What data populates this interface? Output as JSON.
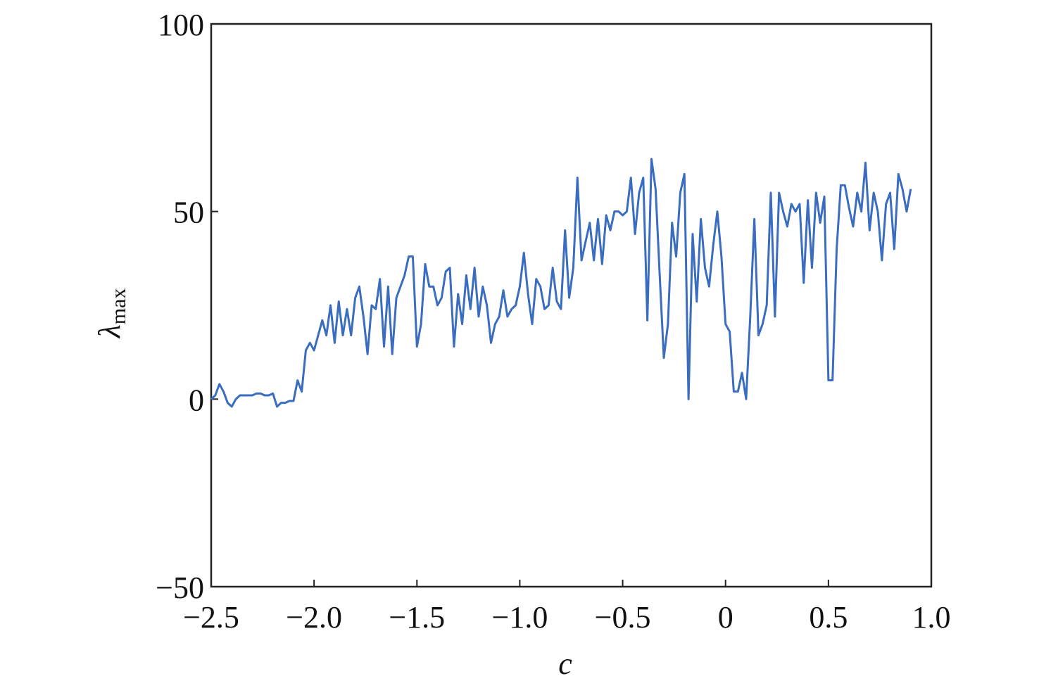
{
  "chart_data": {
    "type": "line",
    "x_label": "c",
    "y_label": "λ",
    "y_label_subscript": "max",
    "xlim": [
      -2.5,
      1.0
    ],
    "ylim": [
      -50,
      100
    ],
    "xticks": [
      {
        "value": -2.5,
        "label": "−2.5"
      },
      {
        "value": -2.0,
        "label": "−2.0"
      },
      {
        "value": -1.5,
        "label": "−1.5"
      },
      {
        "value": -1.0,
        "label": "−1.0"
      },
      {
        "value": -0.5,
        "label": "−0.5"
      },
      0,
      0.5,
      {
        "value": 1.0,
        "label": "1.0"
      }
    ],
    "yticks": [
      {
        "value": -50,
        "label": "−50"
      },
      0,
      50,
      100
    ],
    "grid": false,
    "series": [
      {
        "color": "#3a6dbf",
        "x": [
          -2.5,
          -2.48,
          -2.46,
          -2.44,
          -2.42,
          -2.4,
          -2.38,
          -2.36,
          -2.34,
          -2.32,
          -2.3,
          -2.28,
          -2.26,
          -2.24,
          -2.22,
          -2.2,
          -2.18,
          -2.16,
          -2.14,
          -2.12,
          -2.1,
          -2.08,
          -2.06,
          -2.04,
          -2.02,
          -2,
          -1.98,
          -1.96,
          -1.94,
          -1.92,
          -1.9,
          -1.88,
          -1.86,
          -1.84,
          -1.82,
          -1.8,
          -1.78,
          -1.76,
          -1.74,
          -1.72,
          -1.7,
          -1.68,
          -1.66,
          -1.64,
          -1.62,
          -1.6,
          -1.58,
          -1.56,
          -1.54,
          -1.52,
          -1.5,
          -1.48,
          -1.46,
          -1.44,
          -1.42,
          -1.4,
          -1.38,
          -1.36,
          -1.34,
          -1.32,
          -1.3,
          -1.28,
          -1.26,
          -1.24,
          -1.22,
          -1.2,
          -1.18,
          -1.16,
          -1.14,
          -1.12,
          -1.1,
          -1.08,
          -1.06,
          -1.04,
          -1.02,
          -1,
          -0.98,
          -0.96,
          -0.94,
          -0.92,
          -0.9,
          -0.88,
          -0.86,
          -0.84,
          -0.82,
          -0.8,
          -0.78,
          -0.76,
          -0.74,
          -0.72,
          -0.7,
          -0.68,
          -0.66,
          -0.64,
          -0.62,
          -0.6,
          -0.58,
          -0.56,
          -0.54,
          -0.52,
          -0.5,
          -0.48,
          -0.46,
          -0.44,
          -0.42,
          -0.4,
          -0.38,
          -0.36,
          -0.34,
          -0.32,
          -0.3,
          -0.28,
          -0.26,
          -0.24,
          -0.22,
          -0.2,
          -0.18,
          -0.16,
          -0.14,
          -0.12,
          -0.1,
          -0.08,
          -0.06,
          -0.04,
          -0.02,
          0,
          0.02,
          0.04,
          0.06,
          0.08,
          0.1,
          0.12,
          0.14,
          0.16,
          0.18,
          0.2,
          0.22,
          0.24,
          0.26,
          0.28,
          0.3,
          0.32,
          0.34,
          0.36,
          0.38,
          0.4,
          0.42,
          0.44,
          0.46,
          0.48,
          0.5,
          0.52,
          0.54,
          0.56,
          0.58,
          0.6,
          0.62,
          0.64,
          0.66,
          0.68,
          0.7,
          0.72,
          0.74,
          0.76,
          0.78,
          0.8,
          0.82,
          0.84,
          0.86,
          0.88,
          0.9
        ],
        "values": [
          0,
          1,
          4,
          2,
          -1,
          -2,
          0,
          1,
          1,
          1,
          1,
          1.5,
          1.5,
          1,
          1,
          1.5,
          -2,
          -1,
          -1,
          -0.5,
          -0.5,
          5,
          2,
          13,
          15,
          13,
          17,
          21,
          17,
          25,
          15,
          26,
          17,
          24,
          17,
          27,
          30,
          22,
          12,
          25,
          24,
          32,
          14,
          30,
          12,
          27,
          30,
          33,
          38,
          38,
          14,
          20,
          36,
          30,
          30,
          25,
          27,
          34,
          35,
          14,
          28,
          20,
          33,
          24,
          35,
          22,
          30,
          25,
          15,
          20,
          22,
          29,
          22,
          24,
          25,
          30,
          39,
          28,
          20,
          32,
          30,
          24,
          25,
          35,
          26,
          24,
          45,
          27,
          35,
          59,
          37,
          42,
          47,
          37,
          48,
          36,
          49,
          45,
          50,
          50,
          49,
          50,
          59,
          44,
          55,
          59,
          21,
          64,
          56,
          33,
          11,
          20,
          47,
          38,
          55,
          60,
          0,
          44,
          26,
          48,
          35,
          30,
          41,
          50,
          38,
          20,
          18,
          2,
          2,
          7,
          0,
          22,
          48,
          17,
          20,
          25,
          55,
          22,
          55,
          50,
          46,
          52,
          50,
          52,
          31,
          53,
          35,
          55,
          47,
          54,
          5,
          5,
          40,
          57,
          57,
          51,
          46,
          55,
          50,
          63,
          45,
          55,
          50,
          37,
          52,
          55,
          40,
          60,
          56,
          50,
          56
        ]
      }
    ]
  }
}
